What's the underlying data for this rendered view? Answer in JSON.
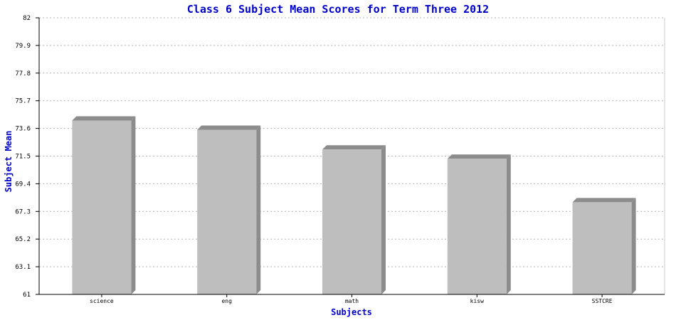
{
  "chart_data": {
    "type": "bar",
    "title": "Class 6 Subject Mean Scores for Term Three 2012",
    "xlabel": "Subjects",
    "ylabel": "Subject Mean",
    "categories": [
      "science",
      "eng",
      "math",
      "kisw",
      "SSTCRE"
    ],
    "values": [
      74.2,
      73.5,
      72.0,
      71.3,
      68.0
    ],
    "ylim": [
      61,
      82
    ],
    "yticks": [
      "61",
      "63.1",
      "65.2",
      "67.3",
      "69.4",
      "71.5",
      "73.6",
      "75.7",
      "77.8",
      "79.9",
      "82"
    ],
    "grid": true,
    "legend": "none",
    "colors": {
      "bar_face": "#bebebe",
      "bar_shadow": "#8c8c8c",
      "grid": "#b4b4b4",
      "text_accent": "#0000cc"
    }
  }
}
